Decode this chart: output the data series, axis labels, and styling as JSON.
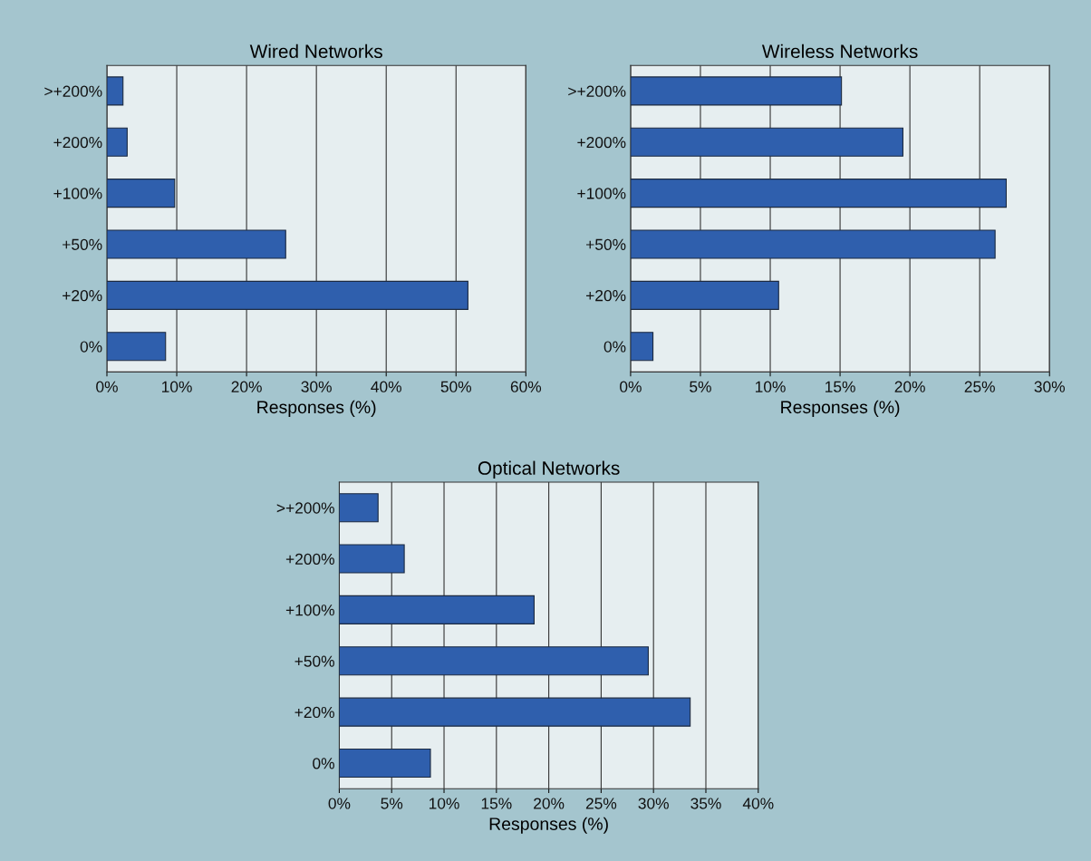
{
  "chart_data": [
    {
      "type": "bar",
      "orientation": "horizontal",
      "title": "Wired Networks",
      "xlabel": "Responses (%)",
      "categories": [
        ">+200%",
        "+200%",
        "+100%",
        "+50%",
        "+20%",
        "0%"
      ],
      "values": [
        2.3,
        2.9,
        9.7,
        25.6,
        51.7,
        8.4
      ],
      "color": "#2f5fad",
      "xlim": [
        0,
        60
      ],
      "xticks": [
        {
          "value": 0,
          "label": "0%"
        },
        {
          "value": 10,
          "label": "10%"
        },
        {
          "value": 20,
          "label": "20%"
        },
        {
          "value": 30,
          "label": "30%"
        },
        {
          "value": 40,
          "label": "40%"
        },
        {
          "value": 50,
          "label": "50%"
        },
        {
          "value": 60,
          "label": "60%"
        }
      ],
      "grid": "x"
    },
    {
      "type": "bar",
      "orientation": "horizontal",
      "title": "Wireless Networks",
      "xlabel": "Responses (%)",
      "categories": [
        ">+200%",
        "+200%",
        "+100%",
        "+50%",
        "+20%",
        "0%"
      ],
      "values": [
        15.1,
        19.5,
        26.9,
        26.1,
        10.6,
        1.6
      ],
      "color": "#2f5fad",
      "xlim": [
        0,
        30
      ],
      "xticks": [
        {
          "value": 0,
          "label": "0%"
        },
        {
          "value": 5,
          "label": "5%"
        },
        {
          "value": 10,
          "label": "10%"
        },
        {
          "value": 15,
          "label": "15%"
        },
        {
          "value": 20,
          "label": "20%"
        },
        {
          "value": 25,
          "label": "25%"
        },
        {
          "value": 30,
          "label": "30%"
        }
      ],
      "grid": "x"
    },
    {
      "type": "bar",
      "orientation": "horizontal",
      "title": "Optical Networks",
      "xlabel": "Responses (%)",
      "categories": [
        ">+200%",
        "+200%",
        "+100%",
        "+50%",
        "+20%",
        "0%"
      ],
      "values": [
        3.7,
        6.2,
        18.6,
        29.5,
        33.5,
        8.7
      ],
      "color": "#2f5fad",
      "xlim": [
        0,
        40
      ],
      "xticks": [
        {
          "value": 0,
          "label": "0%"
        },
        {
          "value": 5,
          "label": "5%"
        },
        {
          "value": 10,
          "label": "10%"
        },
        {
          "value": 15,
          "label": "15%"
        },
        {
          "value": 20,
          "label": "20%"
        },
        {
          "value": 25,
          "label": "25%"
        },
        {
          "value": 30,
          "label": "30%"
        },
        {
          "value": 35,
          "label": "35%"
        },
        {
          "value": 40,
          "label": "40%"
        }
      ],
      "grid": "x"
    }
  ]
}
